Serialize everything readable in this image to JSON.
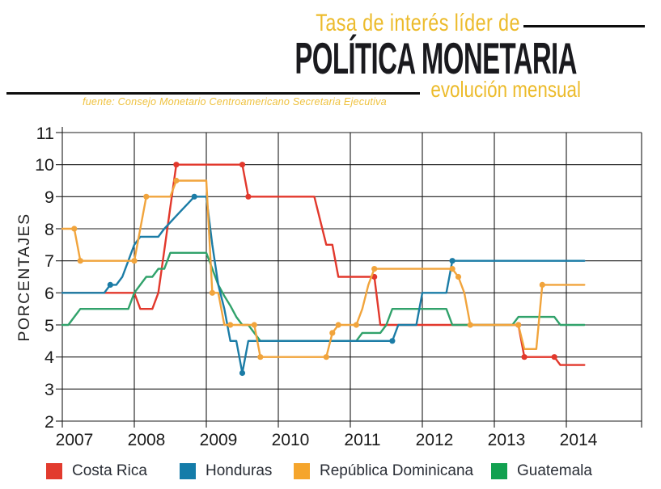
{
  "header": {
    "title_line1": "Tasa de interés líder de",
    "title_main": "POLÍTICA MONETARIA",
    "title_sub": "evolución mensual",
    "source": "fuente: Consejo Monetario Centroamericano Secretaria Ejecutiva",
    "accent_color": "#ECBB2B",
    "title_color": "#1A1A1E"
  },
  "chart_data": {
    "type": "line",
    "title": "Tasa de interés líder de política monetaria — evolución mensual",
    "ylabel": "PORCENTAJES",
    "xlabel": "",
    "ylim": [
      2,
      11
    ],
    "grid": true,
    "x_unit": "month",
    "x_start": "2007-01",
    "x_end": "2014-04",
    "x_ticks": [
      "2007",
      "2008",
      "2009",
      "2010",
      "2011",
      "2012",
      "2013",
      "2014"
    ],
    "y_ticks": [
      "11",
      "10",
      "9",
      "8",
      "7",
      "6",
      "5",
      "4",
      "3",
      "2"
    ],
    "legend_position": "bottom",
    "series": [
      {
        "name": "Costa Rica",
        "color": "#E2382C",
        "values": [
          6,
          6,
          6,
          6,
          6,
          6,
          6,
          6,
          6,
          6,
          6,
          6,
          6,
          5.5,
          5.5,
          5.5,
          6,
          7.33,
          8.67,
          10,
          10,
          10,
          10,
          10,
          10,
          10,
          10,
          10,
          10,
          10,
          10,
          9,
          9,
          9,
          9,
          9,
          9,
          9,
          9,
          9,
          9,
          9,
          9,
          8.25,
          7.5,
          7.5,
          6.5,
          6.5,
          6.5,
          6.5,
          6.5,
          6.5,
          6.5,
          5,
          5,
          5,
          5,
          5,
          5,
          5,
          5,
          5,
          5,
          5,
          5,
          5,
          5,
          5,
          5,
          5,
          5,
          5,
          5,
          5,
          5,
          5,
          5,
          4,
          4,
          4,
          4,
          4,
          4,
          3.75,
          3.75,
          3.75,
          3.75,
          3.75
        ],
        "markers": [
          19,
          30,
          31,
          52,
          76,
          77,
          82
        ]
      },
      {
        "name": "Guatemala",
        "color": "#31A26B",
        "values": [
          5,
          5,
          5.25,
          5.5,
          5.5,
          5.5,
          5.5,
          5.5,
          5.5,
          5.5,
          5.5,
          5.5,
          6,
          6.25,
          6.5,
          6.5,
          6.75,
          6.75,
          7.25,
          7.25,
          7.25,
          7.25,
          7.25,
          7.25,
          7.25,
          6.75,
          6.25,
          5.9,
          5.6,
          5.25,
          5,
          5,
          4.75,
          4.5,
          4.5,
          4.5,
          4.5,
          4.5,
          4.5,
          4.5,
          4.5,
          4.5,
          4.5,
          4.5,
          4.5,
          4.5,
          4.5,
          4.5,
          4.5,
          4.5,
          4.75,
          4.75,
          4.75,
          4.75,
          5,
          5.5,
          5.5,
          5.5,
          5.5,
          5.5,
          5.5,
          5.5,
          5.5,
          5.5,
          5.5,
          5,
          5,
          5,
          5,
          5,
          5,
          5,
          5,
          5,
          5,
          5,
          5.25,
          5.25,
          5.25,
          5.25,
          5.25,
          5.25,
          5.25,
          5,
          5,
          5,
          5,
          5
        ],
        "markers": []
      },
      {
        "name": "Honduras",
        "color": "#1B7CA6",
        "values": [
          6,
          6,
          6,
          6,
          6,
          6,
          6,
          6,
          6.25,
          6.25,
          6.5,
          7,
          7.5,
          7.75,
          7.75,
          7.75,
          7.75,
          8,
          8.2,
          8.4,
          8.6,
          8.8,
          9,
          9,
          9,
          7.5,
          6.25,
          5.5,
          4.5,
          4.5,
          3.5,
          4.5,
          4.5,
          4.5,
          4.5,
          4.5,
          4.5,
          4.5,
          4.5,
          4.5,
          4.5,
          4.5,
          4.5,
          4.5,
          4.5,
          4.5,
          4.5,
          4.5,
          4.5,
          4.5,
          4.5,
          4.5,
          4.5,
          4.5,
          4.5,
          4.5,
          5,
          5,
          5,
          5,
          6,
          6,
          6,
          6,
          6,
          7,
          7,
          7,
          7,
          7,
          7,
          7,
          7,
          7,
          7,
          7,
          7,
          7,
          7,
          7,
          7,
          7,
          7,
          7,
          7,
          7,
          7,
          7
        ],
        "markers": [
          8,
          22,
          30,
          55,
          65
        ]
      },
      {
        "name": "República Dominicana",
        "color": "#F1A43C",
        "values": [
          8,
          8,
          8,
          7,
          7,
          7,
          7,
          7,
          7,
          7,
          7,
          7,
          7,
          8,
          9,
          9,
          9,
          9,
          9,
          9.5,
          9.5,
          9.5,
          9.5,
          9.5,
          9.5,
          6,
          6,
          5,
          5,
          5,
          5,
          5,
          5,
          4,
          4,
          4,
          4,
          4,
          4,
          4,
          4,
          4,
          4,
          4,
          4,
          4.75,
          5,
          5,
          5,
          5,
          5.5,
          6.25,
          6.75,
          6.75,
          6.75,
          6.75,
          6.75,
          6.75,
          6.75,
          6.75,
          6.75,
          6.75,
          6.75,
          6.75,
          6.75,
          6.75,
          6.5,
          6,
          5,
          5,
          5,
          5,
          5,
          5,
          5,
          5,
          5,
          4.25,
          4.25,
          4.25,
          6.25,
          6.25,
          6.25,
          6.25,
          6.25,
          6.25,
          6.25,
          6.25
        ],
        "markers": [
          2,
          3,
          12,
          14,
          19,
          25,
          28,
          32,
          33,
          44,
          45,
          46,
          49,
          52,
          65,
          66,
          68,
          76,
          80
        ]
      }
    ]
  },
  "legend": {
    "items": [
      {
        "label": "Costa Rica",
        "color": "#E23B2E"
      },
      {
        "label": "Honduras",
        "color": "#147CA9"
      },
      {
        "label": "República Dominicana",
        "color": "#F5A52C"
      },
      {
        "label": "Guatemala",
        "color": "#12A150"
      }
    ]
  }
}
